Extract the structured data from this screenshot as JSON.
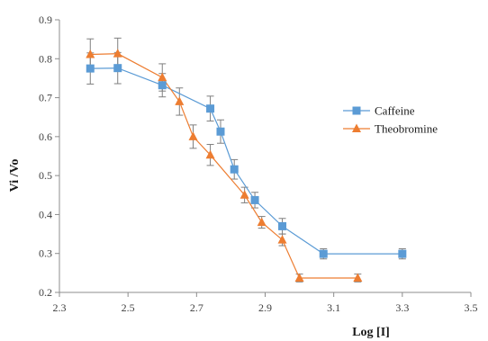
{
  "chart_data": {
    "type": "line",
    "xlabel": "Log [I]",
    "ylabel": "Vi /Vo",
    "xlim": [
      2.3,
      3.5
    ],
    "ylim": [
      0.2,
      0.9
    ],
    "xticks": [
      2.3,
      2.5,
      2.7,
      2.9,
      3.1,
      3.3,
      3.5
    ],
    "yticks": [
      0.2,
      0.3,
      0.4,
      0.5,
      0.6,
      0.7,
      0.8,
      0.9
    ],
    "grid": false,
    "legend_position": "right",
    "series": [
      {
        "name": "Caffeine",
        "color": "#5b9bd5",
        "marker": "square",
        "x": [
          2.39,
          2.47,
          2.6,
          2.74,
          2.77,
          2.81,
          2.87,
          2.95,
          3.07,
          3.3
        ],
        "y": [
          0.775,
          0.776,
          0.732,
          0.672,
          0.613,
          0.516,
          0.437,
          0.37,
          0.299,
          0.299
        ],
        "err": [
          0.04,
          0.04,
          0.03,
          0.032,
          0.03,
          0.025,
          0.02,
          0.02,
          0.013,
          0.013
        ]
      },
      {
        "name": "Theobromine",
        "color": "#ed7d31",
        "marker": "triangle",
        "x": [
          2.39,
          2.47,
          2.6,
          2.65,
          2.69,
          2.74,
          2.84,
          2.89,
          2.95,
          3.0,
          3.17
        ],
        "y": [
          0.811,
          0.813,
          0.752,
          0.69,
          0.6,
          0.553,
          0.45,
          0.38,
          0.335,
          0.237,
          0.237
        ],
        "err": [
          0.04,
          0.04,
          0.035,
          0.035,
          0.03,
          0.027,
          0.02,
          0.015,
          0.015,
          0.01,
          0.01
        ]
      }
    ]
  }
}
